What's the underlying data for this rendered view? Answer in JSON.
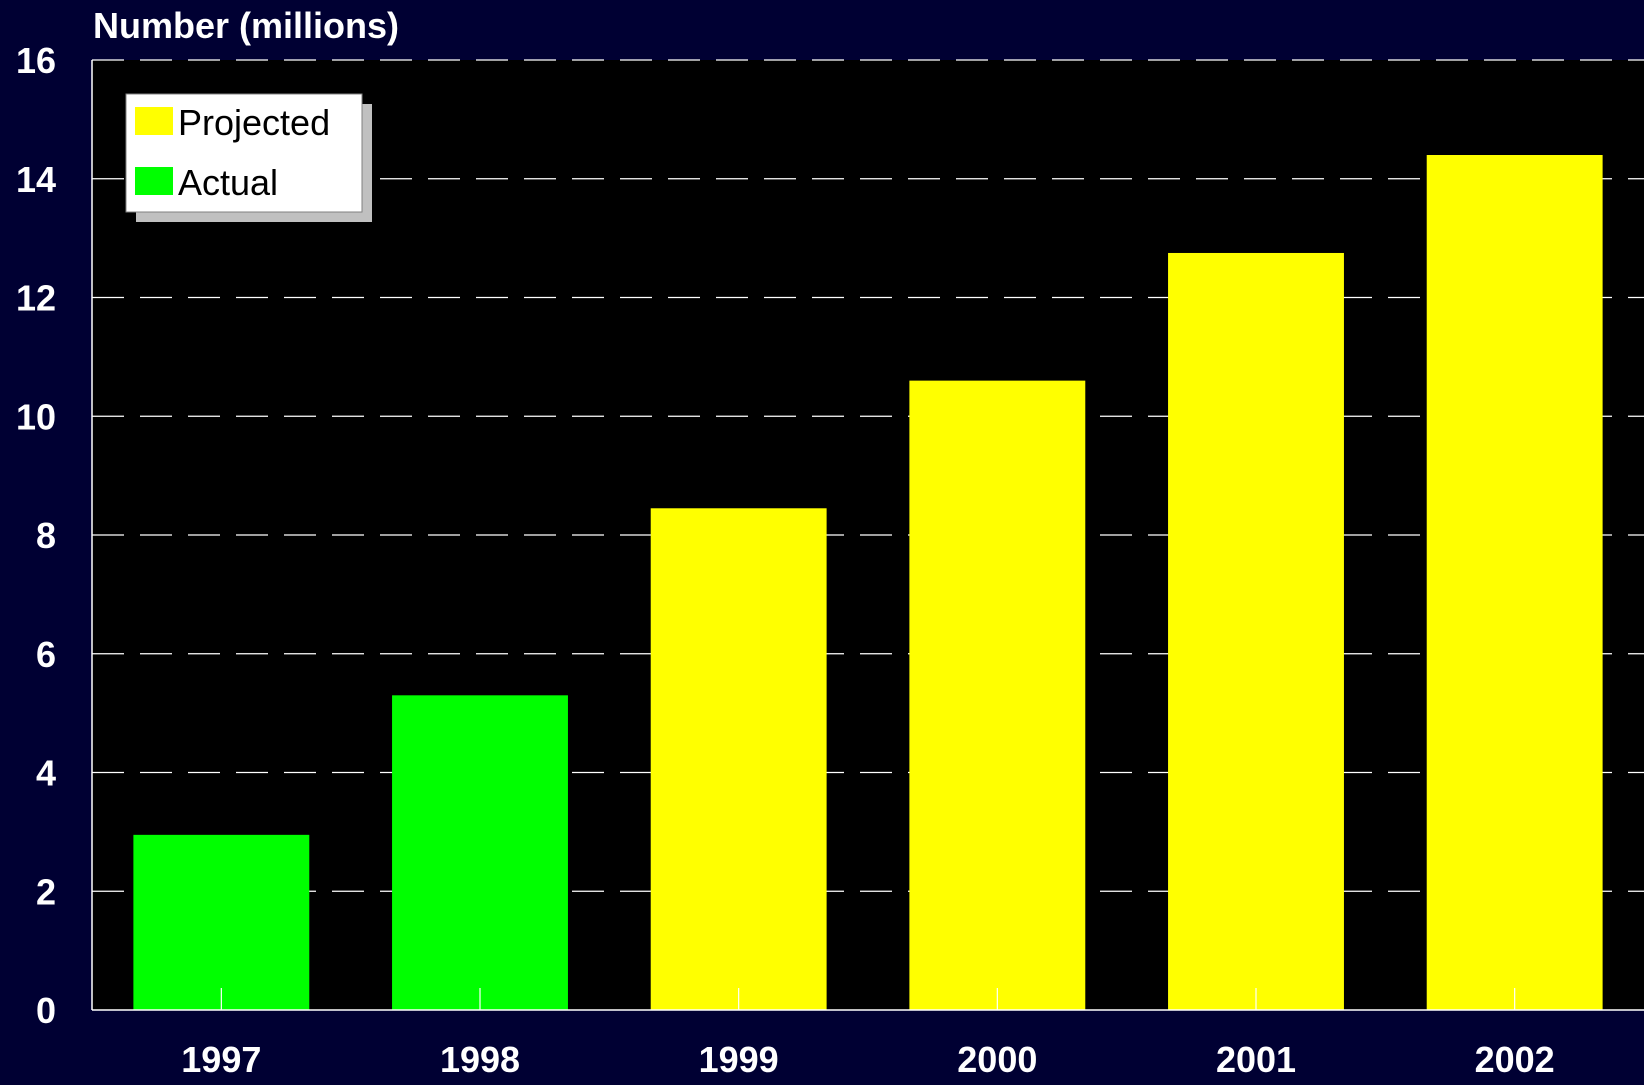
{
  "chart_data": {
    "type": "bar",
    "ylabel": "Number (millions)",
    "xlabel": "",
    "title": "",
    "categories": [
      "1997",
      "1998",
      "1999",
      "2000",
      "2001",
      "2002"
    ],
    "values": [
      2.95,
      5.3,
      8.45,
      10.6,
      12.75,
      14.4
    ],
    "bar_status": [
      "Actual",
      "Actual",
      "Projected",
      "Projected",
      "Projected",
      "Projected"
    ],
    "ylim": [
      0,
      16
    ],
    "yticks": [
      "0",
      "2",
      "4",
      "6",
      "8",
      "10",
      "12",
      "14",
      "16"
    ],
    "grid": "dashed horizontal",
    "legend": {
      "placement": "top-left",
      "entries": [
        {
          "name": "Projected",
          "color": "#ffff00"
        },
        {
          "name": "Actual",
          "color": "#00ff00"
        }
      ]
    },
    "colors": {
      "Projected": "#ffff00",
      "Actual": "#00ff00",
      "background": "#000033",
      "plot_area": "#000000",
      "text": "#ffffff"
    }
  }
}
